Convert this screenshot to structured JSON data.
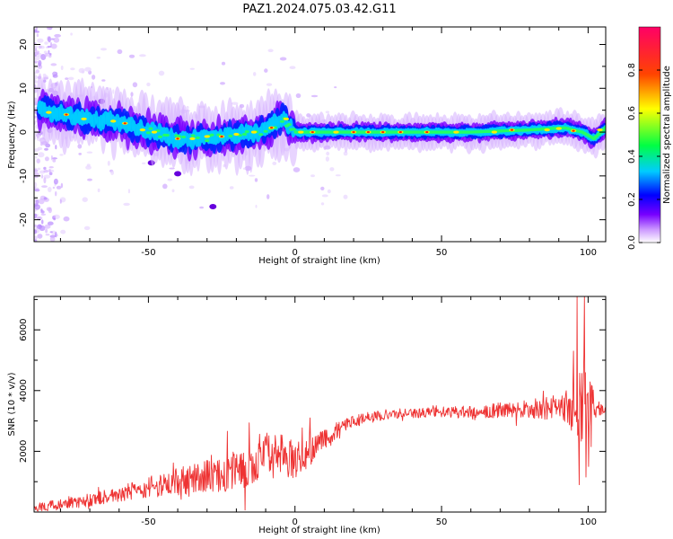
{
  "figure": {
    "title": "PAZ1.2024.075.03.42.G11"
  },
  "chart_data": [
    {
      "type": "heatmap",
      "xlabel": "Height of straight line (km)",
      "ylabel": "Frequency (Hz)",
      "xlim": [
        -89,
        106
      ],
      "ylim": [
        -25,
        24
      ],
      "xticks": [
        -50,
        0,
        50,
        100
      ],
      "yticks": [
        -20,
        -10,
        0,
        10,
        20
      ],
      "colorbar": {
        "label": "Normalized spectral amplitude",
        "range": [
          0,
          1
        ],
        "ticks": [
          "0.0",
          "0.2",
          "0.4",
          "0.6",
          "0.8"
        ],
        "colors": [
          "#ffffff",
          "#7700ff",
          "#0000ff",
          "#00ccff",
          "#00ff44",
          "#ffff00",
          "#ff4400",
          "#ff0066"
        ]
      },
      "ridge": {
        "x": [
          -87,
          -80,
          -70,
          -62,
          -55,
          -48,
          -40,
          -32,
          -25,
          -18,
          -12,
          -6,
          -4,
          0,
          5,
          20,
          40,
          60,
          80,
          92,
          98,
          102,
          106
        ],
        "y": [
          5.5,
          4,
          3,
          2.5,
          1,
          0,
          -1.5,
          -1.5,
          -1,
          -0.5,
          0,
          2,
          3,
          0,
          0,
          0,
          0,
          0,
          0.5,
          1,
          0,
          -1.5,
          1
        ]
      }
    },
    {
      "type": "line",
      "xlabel": "Height of straight line (km)",
      "ylabel": "SNR (10 * v/v)",
      "xlim": [
        -89,
        106
      ],
      "ylim": [
        0,
        7100
      ],
      "xticks": [
        -50,
        0,
        50,
        100
      ],
      "yticks": [
        2000,
        4000,
        6000
      ],
      "series": [
        {
          "color": "#ee3333",
          "trend": {
            "x": [
              -89,
              -80,
              -70,
              -60,
              -50,
              -40,
              -30,
              -20,
              -10,
              -5,
              0,
              5,
              10,
              15,
              20,
              25,
              30,
              40,
              50,
              60,
              70,
              80,
              90,
              95,
              97,
              100,
              103,
              106
            ],
            "y": [
              150,
              250,
              400,
              600,
              800,
              1000,
              1200,
              1400,
              1700,
              1900,
              1700,
              2000,
              2400,
              2700,
              3000,
              3100,
              3200,
              3250,
              3300,
              3300,
              3350,
              3400,
              3450,
              3400,
              3100,
              3200,
              3350,
              3400
            ]
          },
          "spread": {
            "x": [
              -89,
              -60,
              -40,
              -20,
              -10,
              0,
              5,
              10,
              20,
              40,
              60,
              80,
              90,
              95,
              97,
              99,
              101,
              103,
              106
            ],
            "y": [
              150,
              250,
              450,
              700,
              800,
              600,
              500,
              400,
              200,
              150,
              200,
              300,
              450,
              800,
              1600,
              2600,
              1500,
              200,
              150
            ]
          },
          "peaks": [
            {
              "x": 96.2,
              "y": 7100
            },
            {
              "x": 98.8,
              "y": 7100
            },
            {
              "x": 96.9,
              "y": 900
            },
            {
              "x": 100.1,
              "y": 1500
            },
            {
              "x": 95.0,
              "y": 5300
            },
            {
              "x": 5.2,
              "y": 3100
            },
            {
              "x": -9.5,
              "y": 2600
            },
            {
              "x": -1.2,
              "y": 1200
            }
          ]
        }
      ]
    }
  ]
}
